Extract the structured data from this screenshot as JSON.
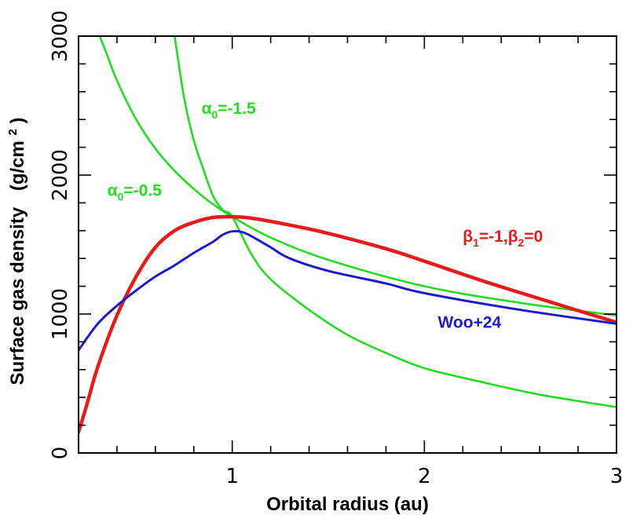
{
  "chart_data": {
    "type": "line",
    "title": "",
    "xlabel": "Orbital radius (au)",
    "ylabel": "Surface gas density",
    "ylabel_unit_prefix": "(g/cm",
    "ylabel_unit_sup": "2",
    "ylabel_unit_suffix": ")",
    "xlim": [
      0.2,
      3.0
    ],
    "ylim": [
      0,
      3000
    ],
    "x_ticks": [
      {
        "value": 1,
        "label": "1"
      },
      {
        "value": 2,
        "label": "2"
      },
      {
        "value": 3,
        "label": "3"
      }
    ],
    "x_minor_ticks": [
      0.4,
      0.6,
      0.8,
      1.2,
      1.4,
      1.6,
      1.8,
      2.2,
      2.4,
      2.6,
      2.8
    ],
    "y_ticks": [
      {
        "value": 0,
        "label": "0"
      },
      {
        "value": 1000,
        "label": "1000"
      },
      {
        "value": 2000,
        "label": "2000"
      },
      {
        "value": 3000,
        "label": "3000"
      }
    ],
    "y_minor_ticks": [
      200,
      400,
      600,
      800,
      1200,
      1400,
      1600,
      1800,
      2200,
      2400,
      2600,
      2800
    ],
    "grid": false,
    "series": [
      {
        "name": "alpha0=-0.5",
        "color": "#22dd22",
        "x": [
          0.31,
          0.35,
          0.4,
          0.5,
          0.6,
          0.7,
          0.8,
          0.9,
          1.0,
          1.2,
          1.5,
          2.0,
          2.5,
          3.0
        ],
        "y": [
          3000,
          2860,
          2680,
          2400,
          2190,
          2030,
          1900,
          1790,
          1700,
          1550,
          1390,
          1200,
          1080,
          990
        ]
      },
      {
        "name": "alpha0=-1.5",
        "color": "#22dd22",
        "x": [
          0.7,
          0.75,
          0.8,
          0.85,
          0.9,
          0.95,
          1.0,
          1.1,
          1.2,
          1.4,
          1.6,
          1.8,
          2.0,
          2.3,
          2.6,
          3.0
        ],
        "y": [
          3000,
          2550,
          2250,
          2040,
          1850,
          1750,
          1700,
          1430,
          1250,
          1030,
          850,
          720,
          610,
          510,
          420,
          330
        ]
      },
      {
        "name": "beta1=-1,beta2=0",
        "color": "#e81b1b",
        "x": [
          0.2,
          0.25,
          0.3,
          0.4,
          0.5,
          0.6,
          0.7,
          0.8,
          0.9,
          1.0,
          1.1,
          1.3,
          1.5,
          1.8,
          2.0,
          2.3,
          2.6,
          3.0
        ],
        "y": [
          150,
          380,
          620,
          990,
          1270,
          1480,
          1600,
          1660,
          1695,
          1700,
          1690,
          1640,
          1580,
          1470,
          1380,
          1240,
          1110,
          940
        ]
      },
      {
        "name": "Woo+24",
        "color": "#1c1ccc",
        "x": [
          0.2,
          0.3,
          0.4,
          0.5,
          0.6,
          0.7,
          0.8,
          0.9,
          0.95,
          1.0,
          1.05,
          1.1,
          1.2,
          1.3,
          1.5,
          1.8,
          2.0,
          2.5,
          3.0
        ],
        "y": [
          740,
          930,
          1060,
          1170,
          1270,
          1350,
          1440,
          1520,
          1570,
          1595,
          1590,
          1560,
          1480,
          1400,
          1310,
          1220,
          1150,
          1030,
          930
        ]
      }
    ],
    "annotations": [
      {
        "name": "alpha0=-1.5",
        "symbol": "α",
        "sub": "0",
        "rest": "=-1.5",
        "color": "#22dd22",
        "x": 0.84,
        "y": 2440
      },
      {
        "name": "alpha0=-0.5",
        "symbol": "α",
        "sub": "0",
        "rest": "=-0.5",
        "color": "#22dd22",
        "x": 0.35,
        "y": 1850
      },
      {
        "name": "beta1=-1,beta2=0",
        "color": "#e81b1b",
        "x": 2.2,
        "y": 1520,
        "parts": [
          [
            "β",
            ""
          ],
          [
            "1",
            "sub"
          ],
          [
            "=-1,",
            ""
          ],
          [
            "β",
            ""
          ],
          [
            "2",
            "sub"
          ],
          [
            "=0",
            ""
          ]
        ]
      },
      {
        "name": "Woo+24",
        "rest": "Woo+24",
        "color": "#1c1ccc",
        "x": 2.07,
        "y": 900
      }
    ]
  }
}
